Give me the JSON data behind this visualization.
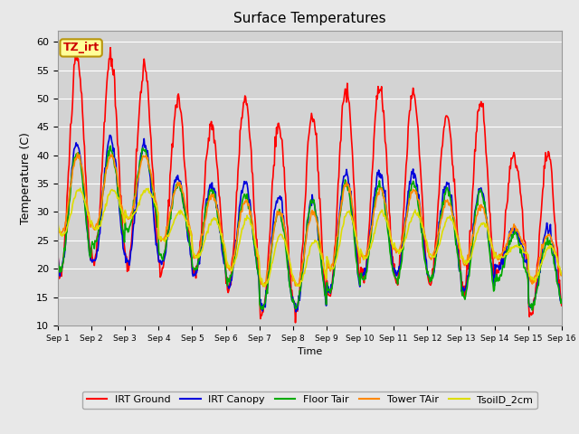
{
  "title": "Surface Temperatures",
  "xlabel": "Time",
  "ylabel": "Temperature (C)",
  "ylim": [
    10,
    62
  ],
  "xlim": [
    0,
    15
  ],
  "xtick_labels": [
    "Sep 1",
    "Sep 2",
    "Sep 3",
    "Sep 4",
    "Sep 5",
    "Sep 6",
    "Sep 7",
    "Sep 8",
    "Sep 9",
    "Sep 10",
    "Sep 11",
    "Sep 12",
    "Sep 13",
    "Sep 14",
    "Sep 15",
    "Sep 16"
  ],
  "ytick_values": [
    10,
    15,
    20,
    25,
    30,
    35,
    40,
    45,
    50,
    55,
    60
  ],
  "fig_facecolor": "#e8e8e8",
  "ax_facecolor": "#d3d3d3",
  "grid_color": "#ffffff",
  "annotation_text": "TZ_irt",
  "annotation_box_color": "#ffff99",
  "annotation_border_color": "#b8960c",
  "irt_ground_peaks": [
    57,
    57,
    55,
    50,
    45,
    50,
    45,
    47,
    52,
    52,
    51,
    47,
    49,
    40,
    40
  ],
  "irt_ground_troughs": [
    19,
    21,
    21,
    19,
    19,
    17,
    12,
    12,
    15,
    18,
    18,
    18,
    16,
    19,
    12
  ],
  "irt_canopy_peaks": [
    42,
    43,
    42,
    36,
    35,
    35,
    33,
    32,
    37,
    37,
    37,
    35,
    34,
    27,
    27
  ],
  "irt_canopy_troughs": [
    20,
    21,
    21,
    21,
    19,
    17,
    13,
    13,
    16,
    19,
    19,
    18,
    16,
    20,
    13
  ],
  "floor_peaks": [
    41,
    41,
    41,
    35,
    34,
    33,
    30,
    32,
    35,
    35,
    35,
    34,
    34,
    26,
    25
  ],
  "floor_troughs": [
    20,
    24,
    27,
    22,
    20,
    18,
    13,
    13,
    16,
    18,
    18,
    18,
    15,
    18,
    13
  ],
  "tower_peaks": [
    40,
    40,
    40,
    35,
    33,
    32,
    30,
    30,
    35,
    34,
    34,
    32,
    31,
    27,
    26
  ],
  "tower_troughs": [
    26,
    27,
    29,
    25,
    22,
    20,
    17,
    17,
    20,
    22,
    23,
    22,
    21,
    22,
    18
  ],
  "tsoil_peaks": [
    34,
    34,
    34,
    30,
    29,
    29,
    26,
    25,
    30,
    30,
    30,
    29,
    28,
    24,
    24
  ],
  "tsoil_troughs": [
    26,
    27,
    29,
    25,
    22,
    20,
    17,
    17,
    20,
    22,
    23,
    22,
    21,
    22,
    18
  ],
  "colors": {
    "irt_ground": "#ff0000",
    "irt_canopy": "#0000dd",
    "floor_tair": "#00aa00",
    "tower_tair": "#ff8800",
    "tsoil_2cm": "#dddd00"
  },
  "legend_names": [
    "IRT Ground",
    "IRT Canopy",
    "Floor Tair",
    "Tower TAir",
    "TsoilD_2cm"
  ],
  "linewidth": 1.2
}
